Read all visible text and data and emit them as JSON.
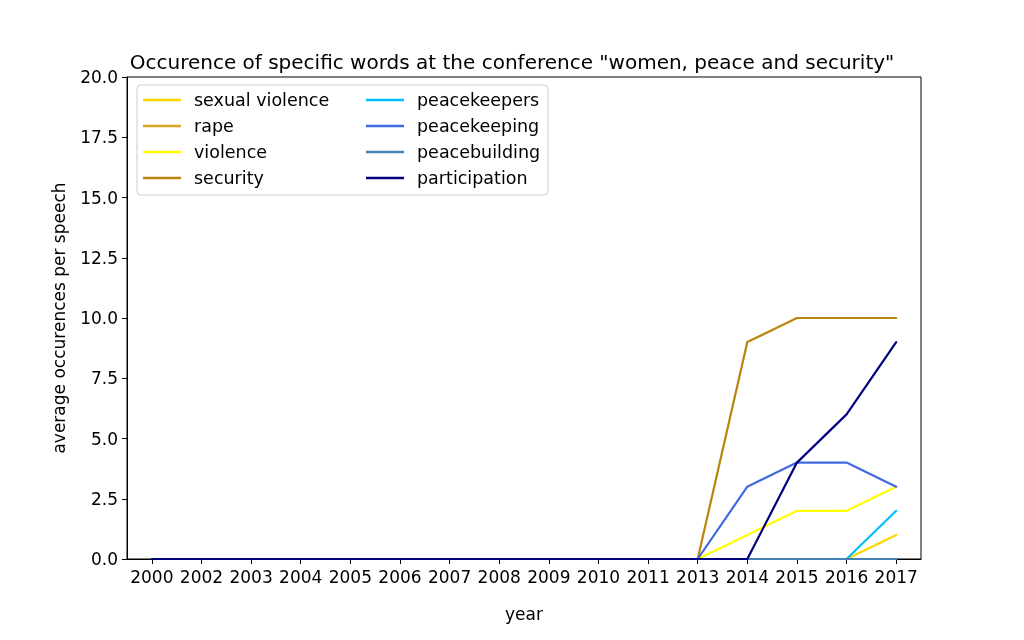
{
  "chart_data": {
    "type": "line",
    "title": "Occurence of specific words at the conference \"women, peace and security\"",
    "xlabel": "year",
    "ylabel": "average occurences per speech",
    "categories": [
      "2000",
      "2002",
      "2003",
      "2004",
      "2005",
      "2006",
      "2007",
      "2008",
      "2009",
      "2010",
      "2011",
      "2013",
      "2014",
      "2015",
      "2016",
      "2017"
    ],
    "series": [
      {
        "name": "sexual violence",
        "color": "#ffd700",
        "values": [
          null,
          null,
          null,
          null,
          null,
          null,
          null,
          null,
          null,
          null,
          null,
          null,
          null,
          null,
          0,
          1
        ]
      },
      {
        "name": "rape",
        "color": "#daa520",
        "values": [
          null,
          null,
          null,
          null,
          null,
          null,
          null,
          null,
          null,
          null,
          null,
          null,
          null,
          null,
          null,
          null
        ]
      },
      {
        "name": "violence",
        "color": "#ffff00",
        "values": [
          null,
          null,
          null,
          null,
          null,
          null,
          null,
          null,
          null,
          null,
          null,
          0,
          1,
          2,
          2,
          3
        ]
      },
      {
        "name": "security",
        "color": "#b8860b",
        "values": [
          null,
          null,
          null,
          null,
          null,
          null,
          null,
          null,
          null,
          null,
          null,
          0,
          9,
          10,
          10,
          10
        ]
      },
      {
        "name": "peacekeepers",
        "color": "#00bfff",
        "values": [
          null,
          null,
          null,
          null,
          null,
          null,
          null,
          null,
          null,
          null,
          null,
          null,
          null,
          null,
          0,
          2
        ]
      },
      {
        "name": "peacekeeping",
        "color": "#4169e1",
        "values": [
          null,
          null,
          null,
          null,
          null,
          null,
          null,
          null,
          null,
          null,
          null,
          0,
          3,
          4,
          4,
          3
        ]
      },
      {
        "name": "peacebuilding",
        "color": "#4682b4",
        "values": [
          null,
          null,
          null,
          null,
          null,
          null,
          null,
          null,
          null,
          null,
          null,
          null,
          0,
          0,
          0,
          0
        ]
      },
      {
        "name": "participation",
        "color": "#000080",
        "values": [
          0,
          0,
          0,
          0,
          0,
          0,
          0,
          0,
          0,
          0,
          0,
          0,
          0,
          4,
          6,
          9
        ]
      }
    ],
    "ylim": [
      0,
      20
    ],
    "yticks": [
      {
        "value": 0,
        "label": "0.0"
      },
      {
        "value": 2.5,
        "label": "2.5"
      },
      {
        "value": 5,
        "label": "5.0"
      },
      {
        "value": 7.5,
        "label": "7.5"
      },
      {
        "value": 10,
        "label": "10.0"
      },
      {
        "value": 12.5,
        "label": "12.5"
      },
      {
        "value": 15,
        "label": "15.0"
      },
      {
        "value": 17.5,
        "label": "17.5"
      },
      {
        "value": 20,
        "label": "20.0"
      }
    ],
    "grid": false,
    "legend": "top left"
  }
}
